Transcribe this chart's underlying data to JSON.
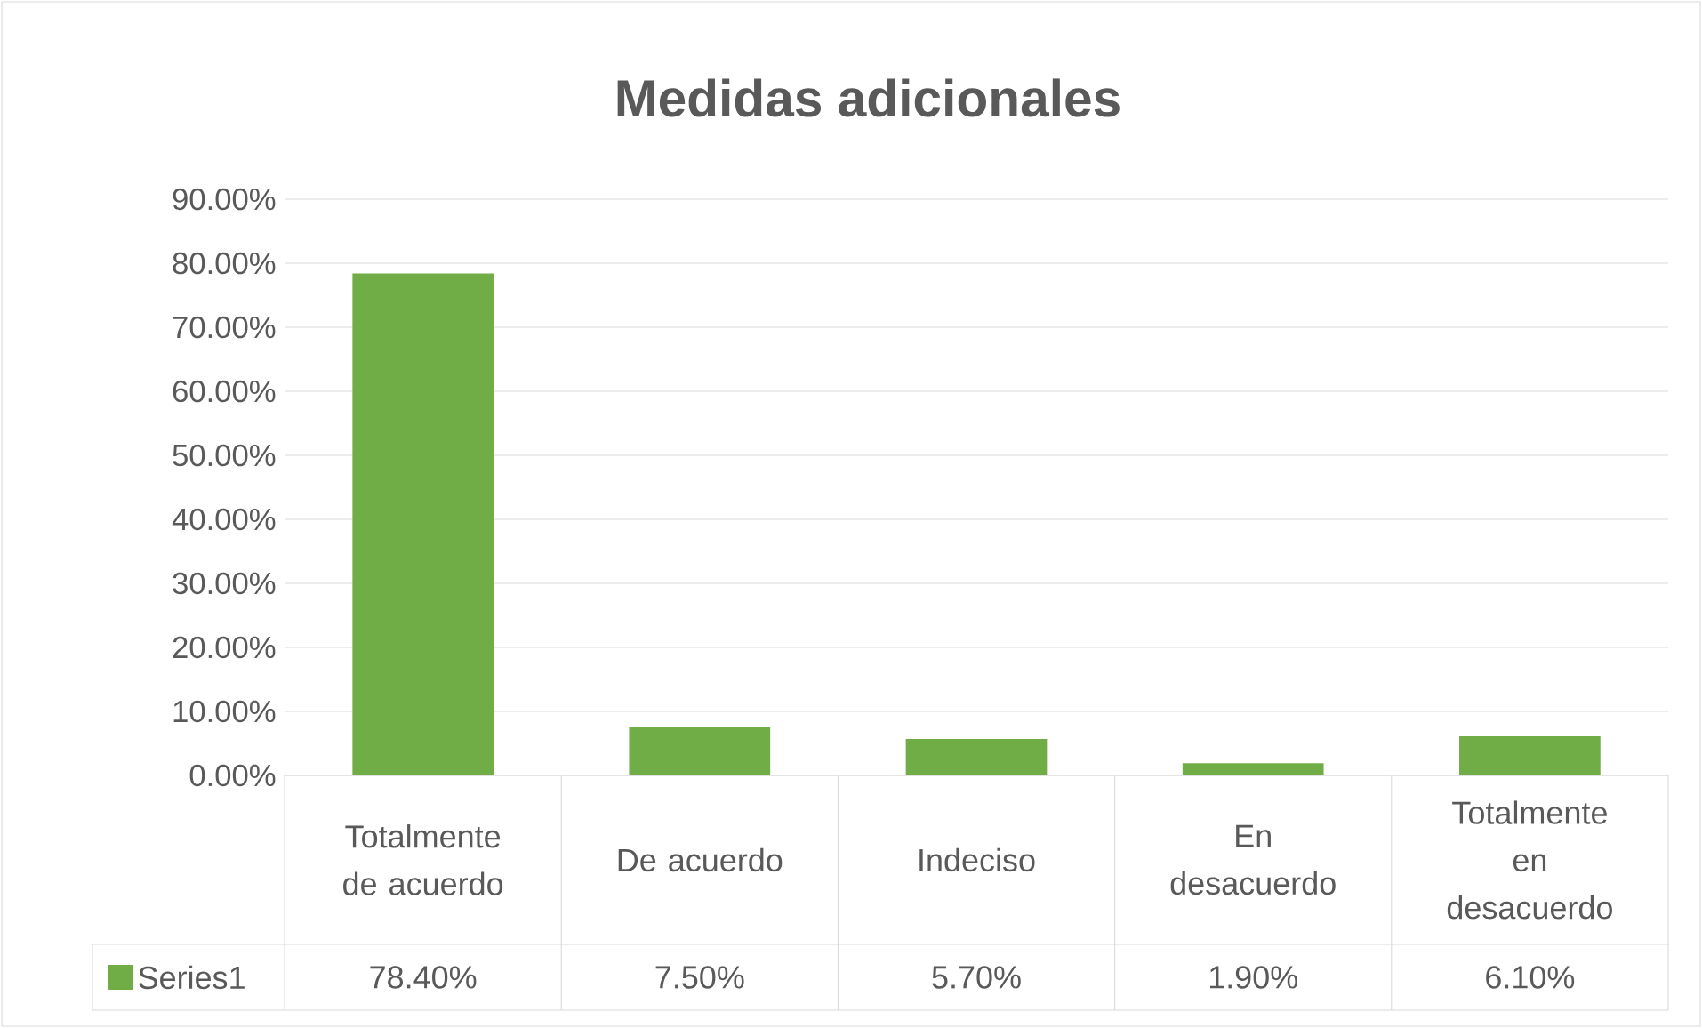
{
  "chart_data": {
    "type": "bar",
    "title": "Medidas adicionales",
    "categories": [
      "Totalmente de acuerdo",
      "De acuerdo",
      "Indeciso",
      "En desacuerdo",
      "Totalmente en desacuerdo"
    ],
    "series": [
      {
        "name": "Series1",
        "color": "#70ad47",
        "values": [
          78.4,
          7.5,
          5.7,
          1.9,
          6.1
        ],
        "value_labels": [
          "78.40%",
          "7.50%",
          "5.70%",
          "1.90%",
          "6.10%"
        ]
      }
    ],
    "ylim": [
      0,
      90
    ],
    "yticks": [
      {
        "value": 0,
        "label": "0.00%"
      },
      {
        "value": 10,
        "label": "10.00%"
      },
      {
        "value": 20,
        "label": "20.00%"
      },
      {
        "value": 30,
        "label": "30.00%"
      },
      {
        "value": 40,
        "label": "40.00%"
      },
      {
        "value": 50,
        "label": "50.00%"
      },
      {
        "value": 60,
        "label": "60.00%"
      },
      {
        "value": 70,
        "label": "70.00%"
      },
      {
        "value": 80,
        "label": "80.00%"
      },
      {
        "value": 90,
        "label": "90.00%"
      }
    ],
    "grid": "y",
    "legend": "bottom left"
  }
}
